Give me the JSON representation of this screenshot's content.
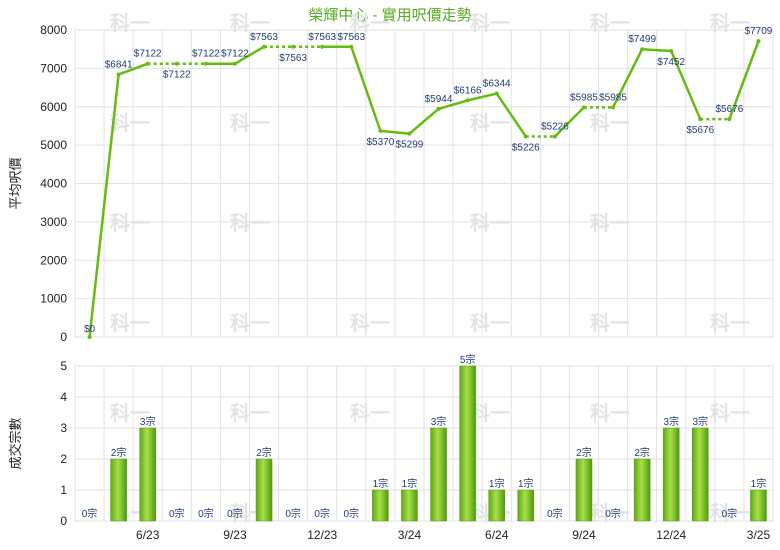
{
  "title": "榮輝中心 - 實用呎價走勢",
  "chart_data": [
    {
      "type": "line",
      "ylabel": "平均呎價",
      "ylim": [
        0,
        8000
      ],
      "yticks": [
        0,
        1000,
        2000,
        3000,
        4000,
        5000,
        6000,
        7000,
        8000
      ],
      "values": [
        0,
        6841,
        7122,
        7122,
        7122,
        7122,
        7563,
        7563,
        7563,
        7563,
        5370,
        5299,
        5944,
        6166,
        6344,
        5226,
        5226,
        5985,
        5985,
        7499,
        7452,
        5676,
        5676,
        7709
      ],
      "carried_forward": [
        false,
        false,
        false,
        true,
        true,
        false,
        false,
        true,
        true,
        false,
        false,
        false,
        false,
        false,
        false,
        false,
        true,
        false,
        true,
        false,
        false,
        false,
        true,
        false
      ],
      "labels": [
        "$0",
        "$6841",
        "$7122",
        "$7122",
        "$7122",
        "$7122",
        "$7563",
        "$7563",
        "$7563",
        "$7563",
        "$5370",
        "$5299",
        "$5944",
        "$6166",
        "$6344",
        "$5226",
        "$5226",
        "$5985",
        "$5985",
        "$7499",
        "$7452",
        "$5676",
        "$5676",
        "$7709"
      ],
      "grid": true
    },
    {
      "type": "bar",
      "ylabel": "成交宗數",
      "ylim": [
        0,
        5
      ],
      "yticks": [
        0,
        1,
        2,
        3,
        4,
        5
      ],
      "values": [
        0,
        2,
        3,
        0,
        0,
        0,
        2,
        0,
        0,
        0,
        1,
        1,
        3,
        5,
        1,
        1,
        0,
        2,
        0,
        2,
        3,
        3,
        0,
        1
      ],
      "labels": [
        "0宗",
        "2宗",
        "3宗",
        "0宗",
        "0宗",
        "0宗",
        "2宗",
        "0宗",
        "0宗",
        "0宗",
        "1宗",
        "1宗",
        "3宗",
        "5宗",
        "1宗",
        "1宗",
        "0宗",
        "2宗",
        "0宗",
        "2宗",
        "3宗",
        "3宗",
        "0宗",
        "1宗"
      ],
      "xtick_labels": [
        "6/23",
        "9/23",
        "12/23",
        "3/24",
        "6/24",
        "9/24",
        "12/24",
        "3/25"
      ],
      "xtick_indices": [
        2,
        5,
        8,
        11,
        14,
        17,
        20,
        23
      ],
      "grid": true
    }
  ],
  "watermark": "科一",
  "colors": {
    "line": "#66bb11",
    "bar": "#7cc41a",
    "bar_dark": "#4f9a0c",
    "title": "#55aa22",
    "label": "#1f3d73"
  }
}
